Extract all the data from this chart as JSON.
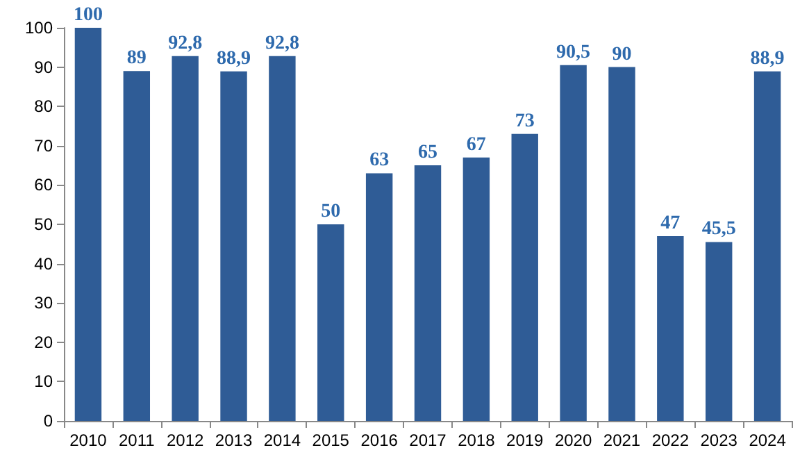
{
  "chart_data": {
    "type": "bar",
    "categories": [
      "2010",
      "2011",
      "2012",
      "2013",
      "2014",
      "2015",
      "2016",
      "2017",
      "2018",
      "2019",
      "2020",
      "2021",
      "2022",
      "2023",
      "2024"
    ],
    "values": [
      100,
      89,
      92.8,
      88.9,
      92.8,
      50,
      63,
      65,
      67,
      73,
      90.5,
      90,
      47,
      45.5,
      88.9
    ],
    "value_labels": [
      "100",
      "89",
      "92,8",
      "88,9",
      "92,8",
      "50",
      "63",
      "65",
      "67",
      "73",
      "90,5",
      "90",
      "47",
      "45,5",
      "88,9"
    ],
    "color": "#2f5c96",
    "ylim": [
      0,
      100
    ],
    "yticks": [
      0,
      10,
      20,
      30,
      40,
      50,
      60,
      70,
      80,
      90,
      100
    ],
    "grid": false
  }
}
